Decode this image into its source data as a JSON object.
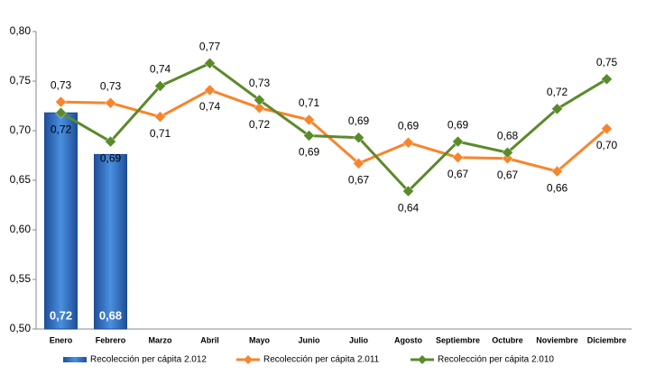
{
  "chart_data": {
    "type": "bar+line",
    "categories": [
      "Enero",
      "Febrero",
      "Marzo",
      "Abril",
      "Mayo",
      "Junio",
      "Julio",
      "Agosto",
      "Septiembre",
      "Octubre",
      "Noviembre",
      "Diciembre"
    ],
    "series": [
      {
        "name": "Recolección per cápita 2.012",
        "type": "bar",
        "color": "#2e6fc0",
        "values": [
          0.718,
          0.676,
          null,
          null,
          null,
          null,
          null,
          null,
          null,
          null,
          null,
          null
        ],
        "value_labels": [
          "0,72",
          "0,68",
          null,
          null,
          null,
          null,
          null,
          null,
          null,
          null,
          null,
          null
        ]
      },
      {
        "name": "Recolección per cápita 2.011",
        "type": "line",
        "color": "#f7852c",
        "values": [
          0.729,
          0.728,
          0.714,
          0.741,
          0.723,
          0.711,
          0.667,
          0.688,
          0.673,
          0.672,
          0.659,
          0.702
        ],
        "value_labels": [
          "0,73",
          "0,73",
          "0,71",
          "0,74",
          "0,72",
          "0,71",
          "0,67",
          "0,69",
          "0,67",
          "0,67",
          "0,66",
          "0,70"
        ]
      },
      {
        "name": "Recolección per cápita 2.010",
        "type": "line",
        "color": "#5b8a2a",
        "values": [
          0.718,
          0.689,
          0.745,
          0.768,
          0.731,
          0.695,
          0.693,
          0.639,
          0.689,
          0.678,
          0.722,
          0.752
        ],
        "value_labels": [
          "0,72",
          "0,69",
          "0,74",
          "0,77",
          "0,73",
          "0,69",
          "0,69",
          "0,64",
          "0,69",
          "0,68",
          "0,72",
          "0,75"
        ]
      }
    ],
    "ylim": [
      0.5,
      0.8
    ],
    "yticks": [
      {
        "value": 0.5,
        "label": "0,50"
      },
      {
        "value": 0.55,
        "label": "0,55"
      },
      {
        "value": 0.6,
        "label": "0,60"
      },
      {
        "value": 0.65,
        "label": "0,65"
      },
      {
        "value": 0.7,
        "label": "0,70"
      },
      {
        "value": 0.75,
        "label": "0,75"
      },
      {
        "value": 0.8,
        "label": "0,80"
      }
    ],
    "grid": false,
    "legend": "bottom"
  }
}
